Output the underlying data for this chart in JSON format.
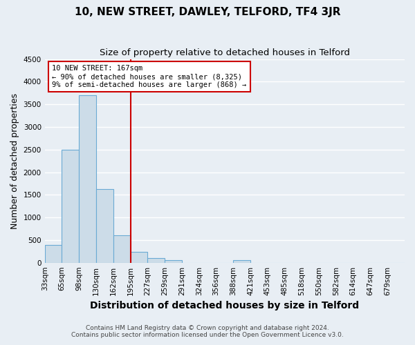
{
  "title": "10, NEW STREET, DAWLEY, TELFORD, TF4 3JR",
  "subtitle": "Size of property relative to detached houses in Telford",
  "xlabel": "Distribution of detached houses by size in Telford",
  "ylabel": "Number of detached properties",
  "bar_color": "#ccdce8",
  "bar_edge_color": "#6aaad4",
  "background_color": "#e8eef4",
  "grid_color": "#ffffff",
  "categories": [
    "33sqm",
    "65sqm",
    "98sqm",
    "130sqm",
    "162sqm",
    "195sqm",
    "227sqm",
    "259sqm",
    "291sqm",
    "324sqm",
    "356sqm",
    "388sqm",
    "421sqm",
    "453sqm",
    "485sqm",
    "518sqm",
    "550sqm",
    "582sqm",
    "614sqm",
    "647sqm",
    "679sqm"
  ],
  "values": [
    390,
    2500,
    3700,
    1630,
    600,
    240,
    100,
    55,
    0,
    0,
    0,
    55,
    0,
    0,
    0,
    0,
    0,
    0,
    0,
    0,
    0
  ],
  "property_size": "167sqm",
  "annotation_line1": "10 NEW STREET: 167sqm",
  "annotation_line2": "← 90% of detached houses are smaller (8,325)",
  "annotation_line3": "9% of semi-detached houses are larger (868) →",
  "ylim": [
    0,
    4500
  ],
  "yticks": [
    0,
    500,
    1000,
    1500,
    2000,
    2500,
    3000,
    3500,
    4000,
    4500
  ],
  "footer1": "Contains HM Land Registry data © Crown copyright and database right 2024.",
  "footer2": "Contains public sector information licensed under the Open Government Licence v3.0.",
  "annotation_box_color": "#cc0000",
  "property_line_color": "#cc0000",
  "property_bar_index": 4,
  "title_fontsize": 11,
  "subtitle_fontsize": 9.5,
  "tick_fontsize": 7.5,
  "ylabel_fontsize": 9,
  "xlabel_fontsize": 10,
  "footer_fontsize": 6.5
}
